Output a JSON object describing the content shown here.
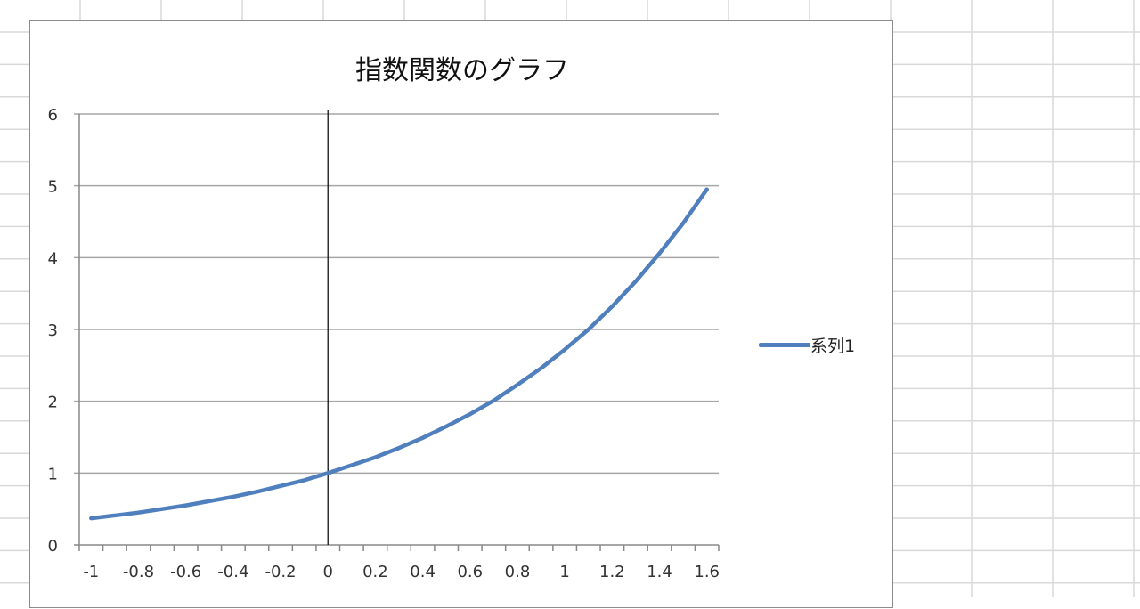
{
  "chart_data": {
    "type": "line",
    "title": "指数関数のグラフ",
    "categories": [
      -1,
      -0.9,
      -0.8,
      -0.7,
      -0.6,
      -0.5,
      -0.4,
      -0.3,
      -0.2,
      -0.1,
      0,
      0.1,
      0.2,
      0.3,
      0.4,
      0.5,
      0.6,
      0.7,
      0.8,
      0.9,
      1,
      1.1,
      1.2,
      1.3,
      1.4,
      1.5,
      1.6
    ],
    "x_tick_labels": [
      "-1",
      "-0.8",
      "-0.6",
      "-0.4",
      "-0.2",
      "0",
      "0.2",
      "0.4",
      "0.6",
      "0.8",
      "1",
      "1.2",
      "1.4",
      "1.6"
    ],
    "series": [
      {
        "name": "系列1",
        "color": "#4f7fbd",
        "values": [
          0.37,
          0.41,
          0.45,
          0.5,
          0.55,
          0.61,
          0.67,
          0.74,
          0.82,
          0.9,
          1.0,
          1.11,
          1.22,
          1.35,
          1.49,
          1.65,
          1.82,
          2.01,
          2.23,
          2.46,
          2.72,
          3.0,
          3.32,
          3.67,
          4.06,
          4.48,
          4.95
        ]
      }
    ],
    "ylim": [
      0,
      6
    ],
    "y_ticks": [
      0,
      1,
      2,
      3,
      4,
      5,
      6
    ],
    "grid": "horizontal major",
    "legend": "right",
    "vertical_line_at_x": 0
  }
}
